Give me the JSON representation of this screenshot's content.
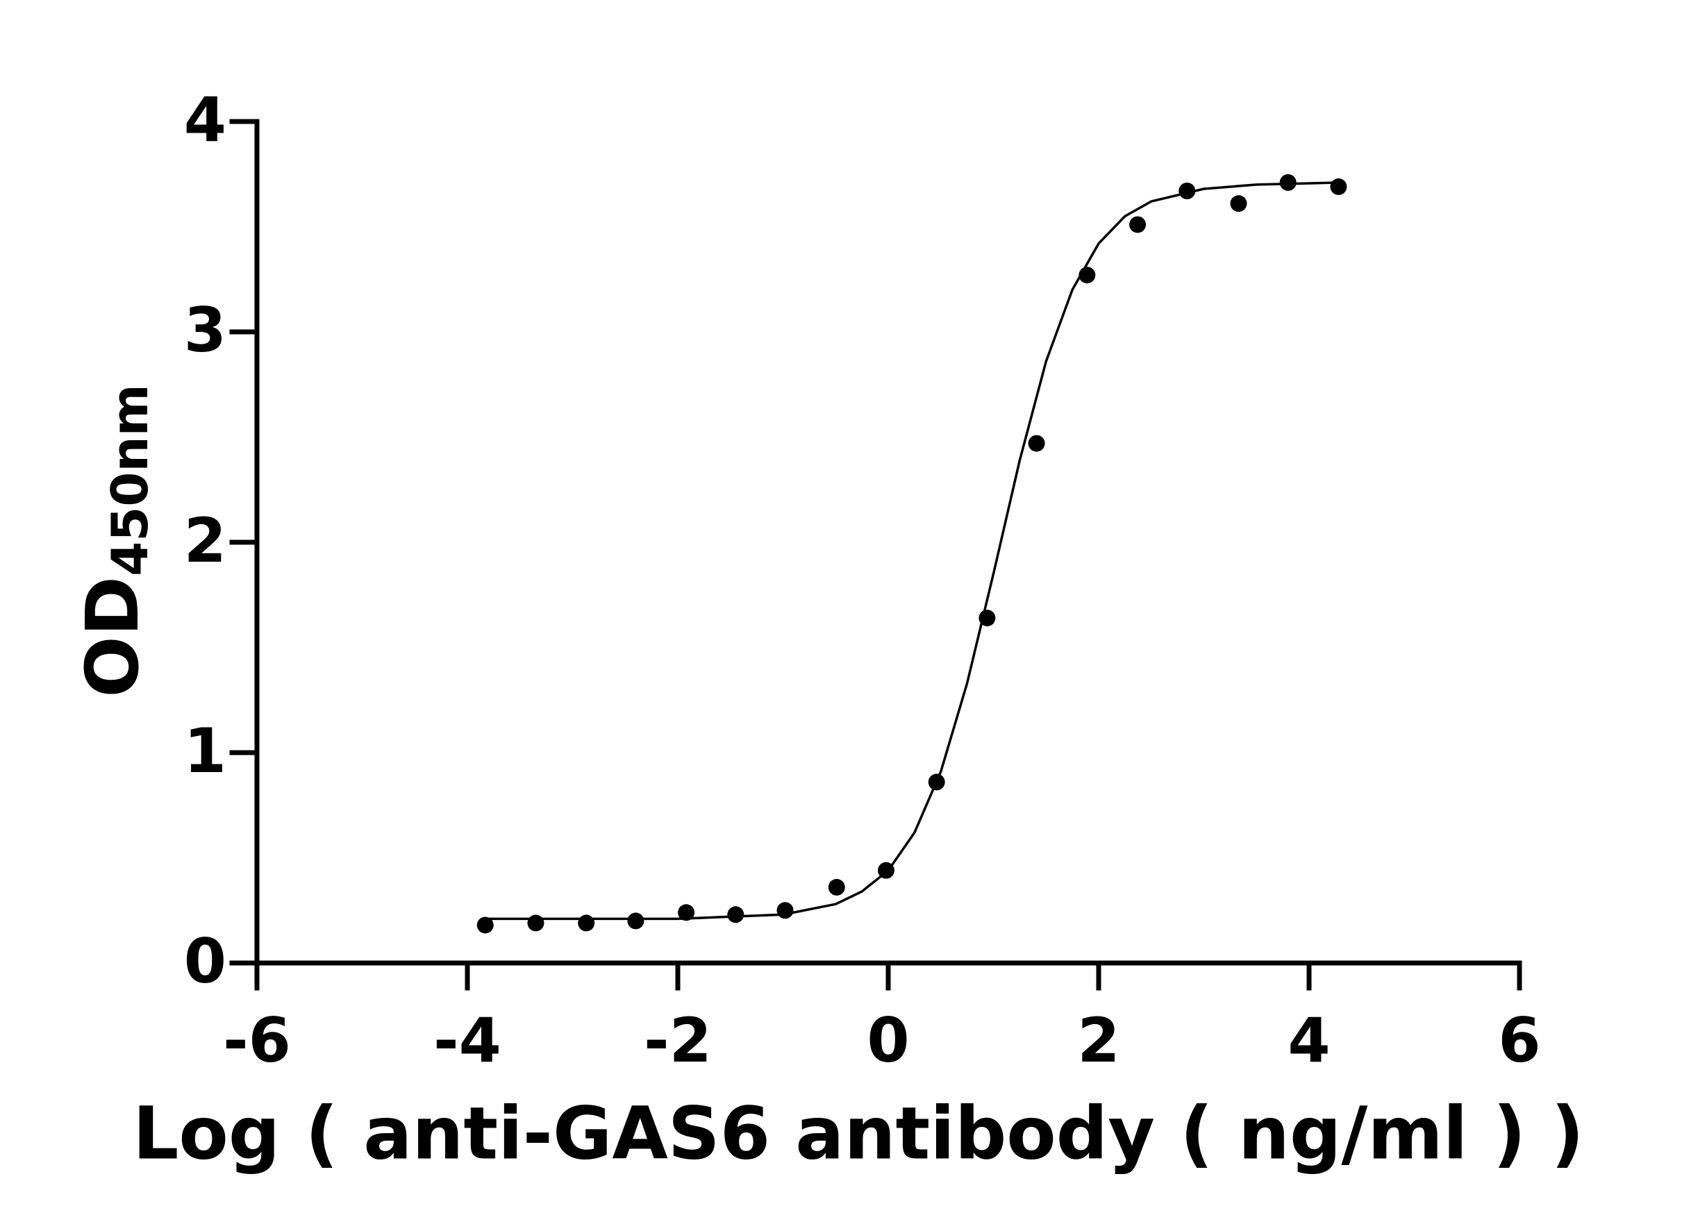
{
  "chart_data": {
    "type": "scatter",
    "x_label": "Log ( anti-GAS6 antibody ( ng/ml )    )",
    "y_label": {
      "text": "OD",
      "subscript": "450nm"
    },
    "xlim": [
      -6,
      6
    ],
    "xticks": [
      -6,
      -4,
      -2,
      0,
      2,
      4,
      6
    ],
    "ylim": [
      0,
      4
    ],
    "yticks": [
      0,
      1,
      2,
      3,
      4
    ],
    "color": "#000000",
    "x": [
      -3.83,
      -3.35,
      -2.87,
      -2.4,
      -1.92,
      -1.45,
      -0.98,
      -0.49,
      -0.02,
      0.46,
      0.94,
      1.41,
      1.89,
      2.37,
      2.84,
      3.33,
      3.8,
      4.28
    ],
    "values": [
      0.18,
      0.19,
      0.19,
      0.2,
      0.24,
      0.23,
      0.25,
      0.36,
      0.44,
      0.86,
      1.64,
      2.47,
      3.27,
      3.51,
      3.67,
      3.61,
      3.71,
      3.69
    ],
    "fit": {
      "x": [
        -3.8,
        -3,
        -2,
        -1.5,
        -1,
        -0.5,
        -0.25,
        0,
        0.25,
        0.5,
        0.75,
        1,
        1.25,
        1.5,
        1.75,
        2,
        2.25,
        2.5,
        3,
        3.5,
        4.3
      ],
      "values": [
        0.21,
        0.21,
        0.21,
        0.22,
        0.23,
        0.28,
        0.34,
        0.44,
        0.62,
        0.91,
        1.33,
        1.85,
        2.39,
        2.86,
        3.2,
        3.42,
        3.55,
        3.62,
        3.68,
        3.7,
        3.71
      ]
    }
  }
}
